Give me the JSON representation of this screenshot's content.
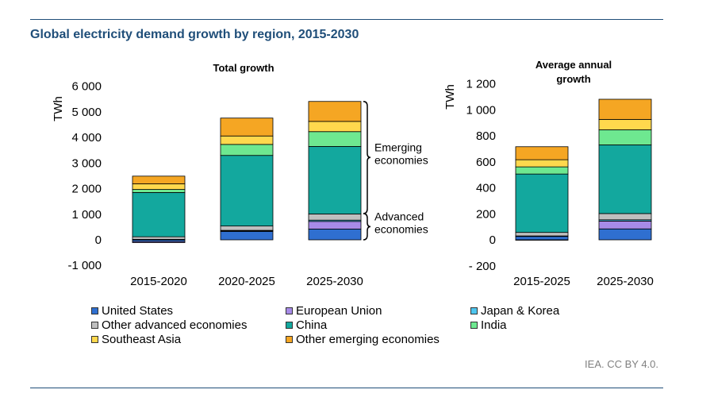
{
  "title": "Global electricity demand growth by region, 2015-2030",
  "source": "IEA. CC BY 4.0.",
  "colors": {
    "United States": "#2f6fd0",
    "European Union": "#a78be8",
    "Japan & Korea": "#4ec6ef",
    "Other advanced economies": "#bfbfbf",
    "China": "#13a89e",
    "India": "#6ee890",
    "Southeast Asia": "#ffd84d",
    "Other emerging economies": "#f5a623"
  },
  "legend": [
    "United States",
    "European Union",
    "Japan & Korea",
    "Other advanced economies",
    "China",
    "India",
    "Southeast Asia",
    "Other emerging economies"
  ],
  "chart_data": [
    {
      "type": "bar",
      "stacked": true,
      "title": "Total  growth",
      "ylabel": "TWh",
      "ylim": [
        -1000,
        6000
      ],
      "yticks": [
        -1000,
        0,
        1000,
        2000,
        3000,
        4000,
        5000,
        6000
      ],
      "ytick_labels": [
        "-1 000",
        "0",
        "1 000",
        "2 000",
        "3 000",
        "4 000",
        "5 000",
        "6 000"
      ],
      "categories": [
        "2015-2020",
        "2020-2025",
        "2025-2030"
      ],
      "series": [
        {
          "name": "United States",
          "values": [
            -70,
            330,
            420
          ]
        },
        {
          "name": "European Union",
          "values": [
            -40,
            20,
            300
          ]
        },
        {
          "name": "Japan & Korea",
          "values": [
            20,
            20,
            50
          ]
        },
        {
          "name": "Other advanced economies",
          "values": [
            100,
            170,
            240
          ]
        },
        {
          "name": "China",
          "values": [
            1730,
            2760,
            2640
          ]
        },
        {
          "name": "India",
          "values": [
            120,
            430,
            580
          ]
        },
        {
          "name": "Southeast Asia",
          "values": [
            220,
            330,
            400
          ]
        },
        {
          "name": "Other emerging economies",
          "values": [
            300,
            700,
            780
          ]
        }
      ],
      "annotations": [
        {
          "label": "Emerging economies",
          "range": [
            1030,
            5410
          ]
        },
        {
          "label": "Advanced economies",
          "range": [
            0,
            1030
          ]
        }
      ]
    },
    {
      "type": "bar",
      "stacked": true,
      "title": "Average annual growth",
      "ylabel": "TWh",
      "ylim": [
        -200,
        1200
      ],
      "yticks": [
        -200,
        0,
        200,
        400,
        600,
        800,
        1000,
        1200
      ],
      "ytick_labels": [
        "- 200",
        "0",
        "200",
        "400",
        "600",
        "800",
        "1 000",
        "1 200"
      ],
      "categories": [
        "2015-2025",
        "2025-2030"
      ],
      "series": [
        {
          "name": "United States",
          "values": [
            26,
            84
          ]
        },
        {
          "name": "European Union",
          "values": [
            -2,
            60
          ]
        },
        {
          "name": "Japan & Korea",
          "values": [
            4,
            10
          ]
        },
        {
          "name": "Other advanced economies",
          "values": [
            27,
            48
          ]
        },
        {
          "name": "China",
          "values": [
            449,
            528
          ]
        },
        {
          "name": "India",
          "values": [
            55,
            116
          ]
        },
        {
          "name": "Southeast Asia",
          "values": [
            55,
            80
          ]
        },
        {
          "name": "Other emerging economies",
          "values": [
            100,
            155
          ]
        }
      ]
    }
  ]
}
